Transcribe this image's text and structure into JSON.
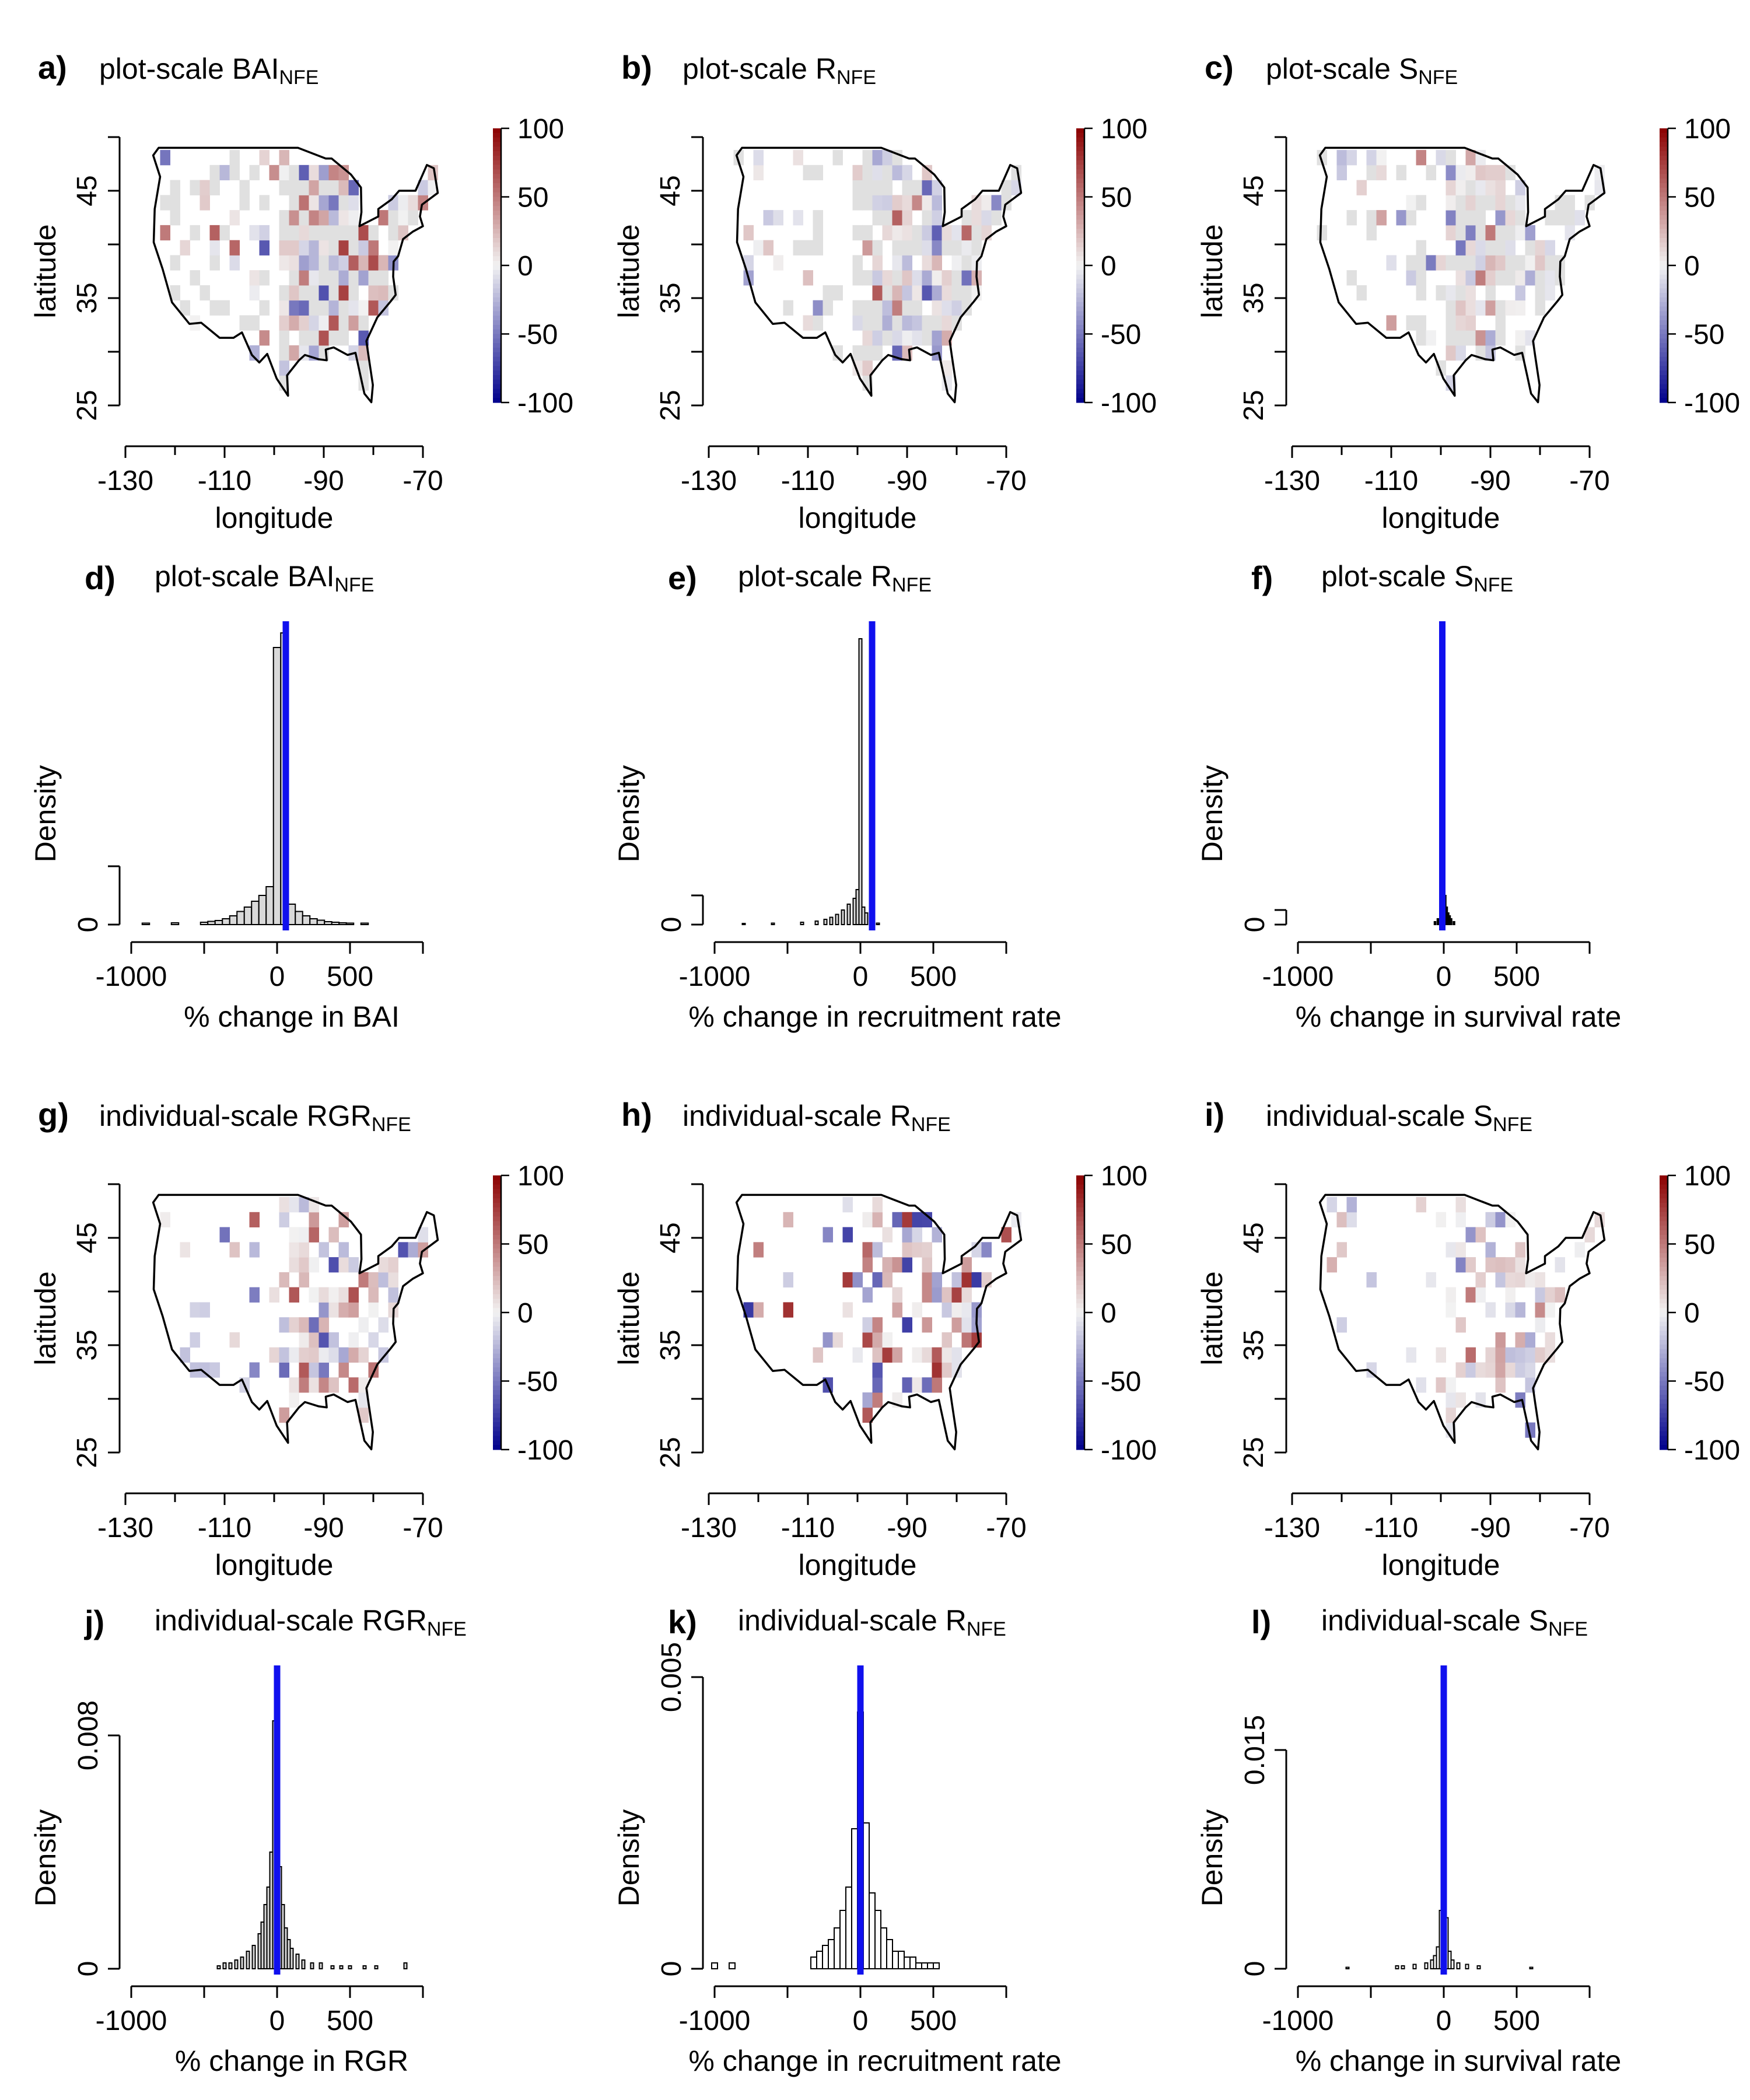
{
  "figure": {
    "background": "#ffffff",
    "colors": {
      "high": "#8b0000",
      "mid": "#f2f2f2",
      "low": "#00008b",
      "land": "#e0e0e0",
      "mean_line": "#1010ee",
      "bar_fill": "#d9d9d9"
    }
  },
  "chart_data": [
    {
      "id": "a",
      "type": "heatmap",
      "label": "a)",
      "title_main": "plot-scale BAI",
      "title_sub": "NFE",
      "xlabel": "longitude",
      "ylabel": "latitude",
      "xlim": [
        -130,
        -70
      ],
      "ylim": [
        25,
        50
      ],
      "xticks": [
        -130,
        -110,
        -90,
        -70
      ],
      "yticks": [
        25,
        35,
        45
      ],
      "colorbar": {
        "min": -100,
        "max": 100,
        "ticks": [
          100,
          50,
          0,
          -50,
          -100
        ]
      },
      "land_shaded": true,
      "density": 0.55,
      "spread": 0.6
    },
    {
      "id": "b",
      "type": "heatmap",
      "label": "b)",
      "title_main": "plot-scale R",
      "title_sub": "NFE",
      "xlabel": "longitude",
      "ylabel": "latitude",
      "xlim": [
        -130,
        -70
      ],
      "ylim": [
        25,
        50
      ],
      "xticks": [
        -130,
        -110,
        -90,
        -70
      ],
      "yticks": [
        25,
        35,
        45
      ],
      "colorbar": {
        "min": -100,
        "max": 100,
        "ticks": [
          100,
          50,
          0,
          -50,
          -100
        ]
      },
      "land_shaded": true,
      "density": 0.55,
      "spread": 0.45
    },
    {
      "id": "c",
      "type": "heatmap",
      "label": "c)",
      "title_main": "plot-scale S",
      "title_sub": "NFE",
      "xlabel": "longitude",
      "ylabel": "latitude",
      "xlim": [
        -130,
        -70
      ],
      "ylim": [
        25,
        50
      ],
      "xticks": [
        -130,
        -110,
        -90,
        -70
      ],
      "yticks": [
        25,
        35,
        45
      ],
      "colorbar": {
        "min": -100,
        "max": 100,
        "ticks": [
          100,
          50,
          0,
          -50,
          -100
        ]
      },
      "land_shaded": true,
      "density": 0.5,
      "spread": 0.25
    },
    {
      "id": "d",
      "type": "histogram",
      "label": "d)",
      "title_main": "plot-scale BAI",
      "title_sub": "NFE",
      "xlabel": "% change in BAI",
      "ylabel": "Density",
      "xlim": [
        -1000,
        1000
      ],
      "xticks": [
        -1000,
        0,
        500
      ],
      "yticks": [
        {
          "value": 0,
          "label": "0"
        }
      ],
      "bin_width": 50,
      "y_max": 1,
      "y_axis_max": 0.2,
      "bar_fill": "#d9d9d9",
      "mean": 60,
      "bins": [
        {
          "x": -900,
          "d": 0.005
        },
        {
          "x": -700,
          "d": 0.006
        },
        {
          "x": -500,
          "d": 0.008
        },
        {
          "x": -450,
          "d": 0.011
        },
        {
          "x": -400,
          "d": 0.014
        },
        {
          "x": -350,
          "d": 0.02
        },
        {
          "x": -300,
          "d": 0.03
        },
        {
          "x": -250,
          "d": 0.045
        },
        {
          "x": -200,
          "d": 0.06
        },
        {
          "x": -150,
          "d": 0.08
        },
        {
          "x": -100,
          "d": 0.1
        },
        {
          "x": -50,
          "d": 0.13
        },
        {
          "x": 0,
          "d": 0.95
        },
        {
          "x": 50,
          "d": 1.0
        },
        {
          "x": 100,
          "d": 0.07
        },
        {
          "x": 150,
          "d": 0.045
        },
        {
          "x": 200,
          "d": 0.03
        },
        {
          "x": 250,
          "d": 0.02
        },
        {
          "x": 300,
          "d": 0.015
        },
        {
          "x": 350,
          "d": 0.01
        },
        {
          "x": 400,
          "d": 0.008
        },
        {
          "x": 450,
          "d": 0.006
        },
        {
          "x": 500,
          "d": 0.005
        },
        {
          "x": 600,
          "d": 0.005
        }
      ]
    },
    {
      "id": "e",
      "type": "histogram",
      "label": "e)",
      "title_main": "plot-scale R",
      "title_sub": "NFE",
      "xlabel": "% change in recruitment rate",
      "ylabel": "Density",
      "xlim": [
        -1000,
        1000
      ],
      "xticks": [
        -1000,
        0,
        500
      ],
      "yticks": [
        {
          "value": 0,
          "label": "0"
        }
      ],
      "bin_width": 20,
      "y_max": 1,
      "y_axis_max": 0.1,
      "bar_fill": "#d9d9d9",
      "mean": 80,
      "bins": [
        {
          "x": -800,
          "d": 0.004
        },
        {
          "x": -600,
          "d": 0.005
        },
        {
          "x": -400,
          "d": 0.008
        },
        {
          "x": -300,
          "d": 0.012
        },
        {
          "x": -240,
          "d": 0.018
        },
        {
          "x": -200,
          "d": 0.025
        },
        {
          "x": -160,
          "d": 0.035
        },
        {
          "x": -120,
          "d": 0.05
        },
        {
          "x": -80,
          "d": 0.07
        },
        {
          "x": -40,
          "d": 0.09
        },
        {
          "x": -20,
          "d": 0.12
        },
        {
          "x": 0,
          "d": 0.98
        },
        {
          "x": 20,
          "d": 0.06
        },
        {
          "x": 40,
          "d": 0.04
        },
        {
          "x": 80,
          "d": 0.015
        },
        {
          "x": 120,
          "d": 0.005
        }
      ]
    },
    {
      "id": "f",
      "type": "histogram",
      "label": "f)",
      "title_main": "plot-scale S",
      "title_sub": "NFE",
      "xlabel": "% change in survival rate",
      "ylabel": "Density",
      "xlim": [
        -1000,
        1000
      ],
      "xticks": [
        -1000,
        0,
        500
      ],
      "yticks": [
        {
          "value": 0,
          "label": "0"
        }
      ],
      "bin_width": 10,
      "y_max": 1,
      "y_axis_max": 0.05,
      "bar_fill": "#000000",
      "mean": -10,
      "bins": [
        {
          "x": -60,
          "d": 0.01
        },
        {
          "x": -40,
          "d": 0.02
        },
        {
          "x": -20,
          "d": 0.04
        },
        {
          "x": -10,
          "d": 0.08
        },
        {
          "x": 0,
          "d": 1.0
        },
        {
          "x": 10,
          "d": 0.1
        },
        {
          "x": 20,
          "d": 0.06
        },
        {
          "x": 30,
          "d": 0.04
        },
        {
          "x": 40,
          "d": 0.03
        },
        {
          "x": 50,
          "d": 0.02
        },
        {
          "x": 70,
          "d": 0.01
        }
      ]
    },
    {
      "id": "g",
      "type": "heatmap",
      "label": "g)",
      "title_main": "individual-scale RGR",
      "title_sub": "NFE",
      "xlabel": "longitude",
      "ylabel": "latitude",
      "xlim": [
        -130,
        -70
      ],
      "ylim": [
        25,
        50
      ],
      "xticks": [
        -130,
        -110,
        -90,
        -70
      ],
      "yticks": [
        25,
        35,
        45
      ],
      "colorbar": {
        "min": -100,
        "max": 100,
        "ticks": [
          100,
          50,
          0,
          -50,
          -100
        ]
      },
      "land_shaded": false,
      "density": 0.5,
      "spread": 0.5
    },
    {
      "id": "h",
      "type": "heatmap",
      "label": "h)",
      "title_main": "individual-scale R",
      "title_sub": "NFE",
      "xlabel": "longitude",
      "ylabel": "latitude",
      "xlim": [
        -130,
        -70
      ],
      "ylim": [
        25,
        50
      ],
      "xticks": [
        -130,
        -110,
        -90,
        -70
      ],
      "yticks": [
        25,
        35,
        45
      ],
      "colorbar": {
        "min": -100,
        "max": 100,
        "ticks": [
          100,
          50,
          0,
          -50,
          -100
        ]
      },
      "land_shaded": false,
      "density": 0.55,
      "spread": 0.7
    },
    {
      "id": "i",
      "type": "heatmap",
      "label": "i)",
      "title_main": "individual-scale S",
      "title_sub": "NFE",
      "xlabel": "longitude",
      "ylabel": "latitude",
      "xlim": [
        -130,
        -70
      ],
      "ylim": [
        25,
        50
      ],
      "xticks": [
        -130,
        -110,
        -90,
        -70
      ],
      "yticks": [
        25,
        35,
        45
      ],
      "colorbar": {
        "min": -100,
        "max": 100,
        "ticks": [
          100,
          50,
          0,
          -50,
          -100
        ]
      },
      "land_shaded": false,
      "density": 0.5,
      "spread": 0.35
    },
    {
      "id": "j",
      "type": "histogram",
      "label": "j)",
      "title_main": "individual-scale RGR",
      "title_sub": "NFE",
      "xlabel": "% change in RGR",
      "ylabel": "Density",
      "xlim": [
        -1000,
        1000
      ],
      "xticks": [
        -1000,
        0,
        500
      ],
      "yticks": [
        {
          "value": 0,
          "label": "0"
        },
        {
          "value": 0.008,
          "label": "0.008"
        }
      ],
      "bin_width": 20,
      "y_max": 0.01,
      "y_axis_max": 0.008,
      "bar_fill": "#d9d9d9",
      "mean": 0,
      "bins": [
        {
          "x": -400,
          "d": 0.0001
        },
        {
          "x": -360,
          "d": 0.0002
        },
        {
          "x": -320,
          "d": 0.0002
        },
        {
          "x": -280,
          "d": 0.0003
        },
        {
          "x": -240,
          "d": 0.0004
        },
        {
          "x": -200,
          "d": 0.0006
        },
        {
          "x": -160,
          "d": 0.0008
        },
        {
          "x": -120,
          "d": 0.0012
        },
        {
          "x": -100,
          "d": 0.0016
        },
        {
          "x": -80,
          "d": 0.0022
        },
        {
          "x": -60,
          "d": 0.0028
        },
        {
          "x": -40,
          "d": 0.004
        },
        {
          "x": -20,
          "d": 0.0085
        },
        {
          "x": 0,
          "d": 0.01
        },
        {
          "x": 20,
          "d": 0.0035
        },
        {
          "x": 40,
          "d": 0.0022
        },
        {
          "x": 60,
          "d": 0.0014
        },
        {
          "x": 80,
          "d": 0.001
        },
        {
          "x": 100,
          "d": 0.0007
        },
        {
          "x": 140,
          "d": 0.0005
        },
        {
          "x": 180,
          "d": 0.0003
        },
        {
          "x": 240,
          "d": 0.0002
        },
        {
          "x": 300,
          "d": 0.0002
        },
        {
          "x": 380,
          "d": 0.0001
        },
        {
          "x": 440,
          "d": 0.0001
        },
        {
          "x": 500,
          "d": 0.0001
        },
        {
          "x": 600,
          "d": 0.0001
        },
        {
          "x": 680,
          "d": 0.0001
        },
        {
          "x": 880,
          "d": 0.0002
        }
      ]
    },
    {
      "id": "k",
      "type": "histogram",
      "label": "k)",
      "title_main": "individual-scale R",
      "title_sub": "NFE",
      "xlabel": "% change in recruitment rate",
      "ylabel": "Density",
      "xlim": [
        -1000,
        1000
      ],
      "xticks": [
        -1000,
        0,
        500
      ],
      "yticks": [
        {
          "value": 0,
          "label": "0"
        },
        {
          "value": 0.005,
          "label": "0.005"
        }
      ],
      "bin_width": 40,
      "y_max": 0.005,
      "y_axis_max": 0.005,
      "bar_fill": "#ffffff",
      "mean": 0,
      "bins": [
        {
          "x": -1000,
          "d": 0.0001
        },
        {
          "x": -880,
          "d": 0.0001
        },
        {
          "x": -320,
          "d": 0.0002
        },
        {
          "x": -280,
          "d": 0.0003
        },
        {
          "x": -240,
          "d": 0.0004
        },
        {
          "x": -200,
          "d": 0.0005
        },
        {
          "x": -160,
          "d": 0.0007
        },
        {
          "x": -120,
          "d": 0.001
        },
        {
          "x": -80,
          "d": 0.0014
        },
        {
          "x": -40,
          "d": 0.0024
        },
        {
          "x": 0,
          "d": 0.0044
        },
        {
          "x": 40,
          "d": 0.0025
        },
        {
          "x": 80,
          "d": 0.0013
        },
        {
          "x": 120,
          "d": 0.001
        },
        {
          "x": 160,
          "d": 0.0007
        },
        {
          "x": 200,
          "d": 0.0005
        },
        {
          "x": 240,
          "d": 0.0003
        },
        {
          "x": 280,
          "d": 0.0003
        },
        {
          "x": 320,
          "d": 0.0002
        },
        {
          "x": 360,
          "d": 0.0002
        },
        {
          "x": 400,
          "d": 0.0001
        },
        {
          "x": 440,
          "d": 0.0001
        },
        {
          "x": 480,
          "d": 0.0001
        },
        {
          "x": 520,
          "d": 0.0001
        }
      ]
    },
    {
      "id": "l",
      "type": "histogram",
      "label": "l)",
      "title_main": "individual-scale S",
      "title_sub": "NFE",
      "xlabel": "% change in survival rate",
      "ylabel": "Density",
      "xlim": [
        -1000,
        1000
      ],
      "xticks": [
        -1000,
        0,
        500
      ],
      "yticks": [
        {
          "value": 0,
          "label": "0"
        },
        {
          "value": 0.015,
          "label": "0.015"
        }
      ],
      "bin_width": 20,
      "y_max": 0.02,
      "y_axis_max": 0.015,
      "bar_fill": "#ffffff",
      "mean": 0,
      "bins": [
        {
          "x": -660,
          "d": 0.0001
        },
        {
          "x": -320,
          "d": 0.0002
        },
        {
          "x": -280,
          "d": 0.0002
        },
        {
          "x": -200,
          "d": 0.0003
        },
        {
          "x": -120,
          "d": 0.0004
        },
        {
          "x": -80,
          "d": 0.0006
        },
        {
          "x": -60,
          "d": 0.0009
        },
        {
          "x": -40,
          "d": 0.0015
        },
        {
          "x": -20,
          "d": 0.004
        },
        {
          "x": 0,
          "d": 0.02
        },
        {
          "x": 20,
          "d": 0.0035
        },
        {
          "x": 40,
          "d": 0.0012
        },
        {
          "x": 60,
          "d": 0.0006
        },
        {
          "x": 100,
          "d": 0.0004
        },
        {
          "x": 160,
          "d": 0.0003
        },
        {
          "x": 240,
          "d": 0.0002
        },
        {
          "x": 600,
          "d": 0.0001
        }
      ]
    }
  ]
}
